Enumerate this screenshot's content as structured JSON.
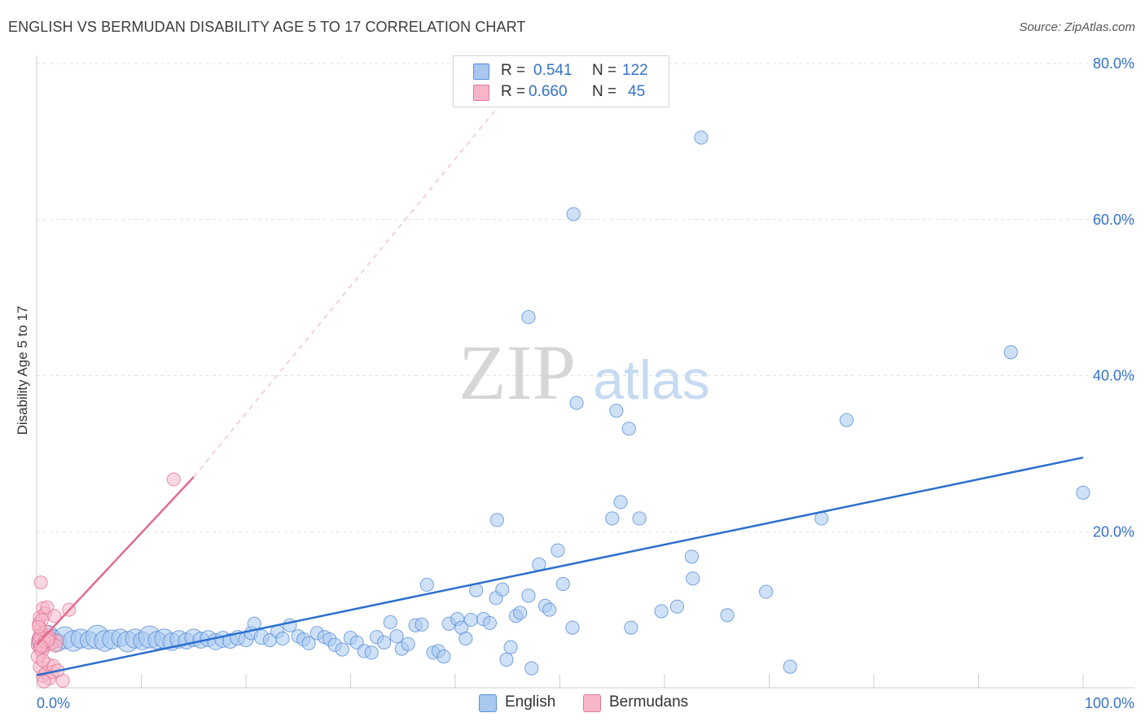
{
  "header": {
    "title": "ENGLISH VS BERMUDAN DISABILITY AGE 5 TO 17 CORRELATION CHART",
    "source": "Source: ZipAtlas.com"
  },
  "watermark": {
    "zip": "ZIP",
    "atlas": "atlas"
  },
  "colors": {
    "english_fill": "#a8c8f0",
    "english_stroke": "#5a8fd6",
    "english_line": "#2a6fcf",
    "bermudan_fill": "#f7b6c8",
    "bermudan_stroke": "#e07898",
    "bermudan_line": "#e46a8e",
    "tick_label": "#3572c9",
    "grid": "#e1e1e1"
  },
  "legend": {
    "english": {
      "r_label": "R = ",
      "r_value": "0.541",
      "n_label": "N = ",
      "n_value": "122"
    },
    "bermudans": {
      "r_label": "R = ",
      "r_value": "0.660",
      "n_label": "N = ",
      "n_value": "45"
    }
  },
  "bottom_legend": {
    "english": "English",
    "bermudans": "Bermudans"
  },
  "chart_data": {
    "type": "scatter",
    "title": "ENGLISH VS BERMUDAN DISABILITY AGE 5 TO 17 CORRELATION CHART",
    "xlabel": "",
    "ylabel": "Disability Age 5 to 17",
    "xlim": [
      0,
      100
    ],
    "ylim": [
      0,
      80
    ],
    "x_tick_labels": [
      "0.0%",
      "100.0%"
    ],
    "y_ticks": [
      20,
      40,
      60,
      80
    ],
    "y_tick_labels": [
      "20.0%",
      "40.0%",
      "60.0%",
      "80.0%"
    ],
    "grid": true,
    "legend_position": "top-center",
    "series": [
      {
        "name": "English",
        "r": 0.541,
        "n": 122,
        "trend": {
          "x": [
            0,
            100
          ],
          "y": [
            1.6,
            29.5
          ],
          "style": "solid"
        },
        "points": [
          [
            0.5,
            6.0,
            14
          ],
          [
            1.0,
            6.5,
            16
          ],
          [
            1.5,
            6.2,
            13
          ],
          [
            2.0,
            5.8,
            12
          ],
          [
            2.7,
            6.4,
            15
          ],
          [
            3.5,
            6.0,
            14
          ],
          [
            4.2,
            6.3,
            13
          ],
          [
            5.0,
            6.1,
            12
          ],
          [
            5.8,
            6.5,
            16
          ],
          [
            6.5,
            6.0,
            14
          ],
          [
            7.2,
            6.2,
            13
          ],
          [
            8.0,
            6.4,
            12
          ],
          [
            8.7,
            5.9,
            14
          ],
          [
            9.4,
            6.3,
            13
          ],
          [
            10.1,
            6.0,
            12
          ],
          [
            10.8,
            6.5,
            15
          ],
          [
            11.5,
            6.1,
            12
          ],
          [
            12.2,
            6.3,
            13
          ],
          [
            12.9,
            5.9,
            12
          ],
          [
            13.6,
            6.2,
            12
          ],
          [
            14.3,
            6.0,
            11
          ],
          [
            15.0,
            6.4,
            12
          ],
          [
            15.7,
            6.1,
            11
          ],
          [
            16.4,
            6.3,
            11
          ],
          [
            17.1,
            5.9,
            11
          ],
          [
            17.8,
            6.2,
            11
          ],
          [
            18.5,
            6.0,
            10
          ],
          [
            19.2,
            6.4,
            10
          ],
          [
            20.0,
            6.2,
            10
          ],
          [
            20.5,
            7.0,
            9
          ],
          [
            20.8,
            8.2,
            9
          ],
          [
            21.5,
            6.5,
            10
          ],
          [
            22.3,
            6.1,
            9
          ],
          [
            23.0,
            7.2,
            9
          ],
          [
            23.5,
            6.3,
            9
          ],
          [
            24.2,
            8.0,
            9
          ],
          [
            25.0,
            6.6,
            9
          ],
          [
            25.5,
            6.2,
            9
          ],
          [
            26.0,
            5.7,
            9
          ],
          [
            26.8,
            7.0,
            9
          ],
          [
            27.5,
            6.5,
            9
          ],
          [
            28.0,
            6.2,
            9
          ],
          [
            28.5,
            5.5,
            9
          ],
          [
            29.2,
            4.9,
            9
          ],
          [
            30.0,
            6.4,
            9
          ],
          [
            30.6,
            5.8,
            9
          ],
          [
            31.3,
            4.7,
            9
          ],
          [
            32.0,
            4.5,
            9
          ],
          [
            32.5,
            6.5,
            9
          ],
          [
            33.2,
            5.8,
            9
          ],
          [
            33.8,
            8.4,
            9
          ],
          [
            34.4,
            6.6,
            9
          ],
          [
            34.9,
            5.0,
            9
          ],
          [
            35.5,
            5.6,
            9
          ],
          [
            36.2,
            8.0,
            9
          ],
          [
            36.8,
            8.1,
            9
          ],
          [
            37.3,
            13.2,
            9
          ],
          [
            37.9,
            4.5,
            9
          ],
          [
            38.4,
            4.7,
            9
          ],
          [
            38.9,
            4.0,
            9
          ],
          [
            39.4,
            8.2,
            9
          ],
          [
            40.2,
            8.8,
            9
          ],
          [
            40.6,
            7.7,
            9
          ],
          [
            41.0,
            6.3,
            9
          ],
          [
            41.5,
            8.7,
            9
          ],
          [
            42.0,
            12.5,
            9
          ],
          [
            42.7,
            8.8,
            9
          ],
          [
            43.3,
            8.3,
            9
          ],
          [
            43.9,
            11.5,
            9
          ],
          [
            44.5,
            12.6,
            9
          ],
          [
            44.9,
            3.6,
            9
          ],
          [
            45.3,
            5.2,
            9
          ],
          [
            45.8,
            9.2,
            9
          ],
          [
            46.2,
            9.6,
            9
          ],
          [
            47.0,
            11.8,
            9
          ],
          [
            47.3,
            2.5,
            9
          ],
          [
            48.0,
            15.8,
            9
          ],
          [
            48.6,
            10.5,
            9
          ],
          [
            49.0,
            10.0,
            9
          ],
          [
            49.8,
            17.6,
            9
          ],
          [
            50.3,
            13.3,
            9
          ],
          [
            51.2,
            7.7,
            9
          ],
          [
            51.6,
            36.5,
            9
          ],
          [
            55.0,
            21.7,
            9
          ],
          [
            55.4,
            35.5,
            9
          ],
          [
            55.8,
            23.8,
            9
          ],
          [
            56.6,
            33.2,
            9
          ],
          [
            56.8,
            7.7,
            9
          ],
          [
            57.6,
            21.7,
            9
          ],
          [
            59.7,
            9.8,
            9
          ],
          [
            61.2,
            10.4,
            9
          ],
          [
            62.6,
            16.8,
            9
          ],
          [
            62.7,
            14.0,
            9
          ],
          [
            63.5,
            70.5,
            9
          ],
          [
            66.0,
            9.3,
            9
          ],
          [
            69.7,
            12.3,
            9
          ],
          [
            72.0,
            2.7,
            9
          ],
          [
            75.0,
            21.7,
            9
          ],
          [
            77.4,
            34.3,
            9
          ],
          [
            93.1,
            43.0,
            9
          ],
          [
            100.0,
            25.0,
            9
          ],
          [
            51.3,
            60.7,
            9
          ],
          [
            47.0,
            47.5,
            9
          ],
          [
            44.0,
            21.5,
            9
          ]
        ]
      },
      {
        "name": "Bermudans",
        "r": 0.66,
        "n": 45,
        "trend": {
          "x": [
            0,
            15
          ],
          "y": [
            5.5,
            27.0
          ],
          "style": "solid",
          "extended_to": [
            47.5,
            80
          ],
          "extended_style": "dashed"
        },
        "points": [
          [
            0.1,
            5.5,
            8
          ],
          [
            0.2,
            6.3,
            8
          ],
          [
            0.3,
            5.0,
            8
          ],
          [
            0.4,
            7.0,
            8
          ],
          [
            0.2,
            8.2,
            8
          ],
          [
            0.5,
            6.8,
            8
          ],
          [
            0.3,
            9.0,
            8
          ],
          [
            0.6,
            10.2,
            8
          ],
          [
            0.4,
            13.5,
            8
          ],
          [
            0.7,
            5.8,
            8
          ],
          [
            0.5,
            4.6,
            8
          ],
          [
            0.8,
            6.5,
            8
          ],
          [
            0.3,
            2.7,
            8
          ],
          [
            0.6,
            1.5,
            8
          ],
          [
            0.9,
            2.0,
            8
          ],
          [
            1.0,
            5.5,
            8
          ],
          [
            1.1,
            3.0,
            8
          ],
          [
            1.2,
            1.2,
            8
          ],
          [
            0.2,
            6.0,
            8
          ],
          [
            0.4,
            7.5,
            8
          ],
          [
            0.6,
            5.2,
            8
          ],
          [
            0.8,
            9.5,
            8
          ],
          [
            1.0,
            10.3,
            8
          ],
          [
            1.3,
            6.3,
            8
          ],
          [
            1.5,
            2.0,
            8
          ],
          [
            1.7,
            9.2,
            8
          ],
          [
            1.9,
            6.0,
            8
          ],
          [
            0.7,
            0.8,
            8
          ],
          [
            2.5,
            0.9,
            8
          ],
          [
            3.1,
            10.0,
            8
          ],
          [
            0.9,
            7.2,
            8
          ],
          [
            1.4,
            5.7,
            8
          ],
          [
            0.1,
            4.0,
            8
          ],
          [
            0.5,
            8.7,
            8
          ],
          [
            1.6,
            2.8,
            8
          ],
          [
            0.3,
            6.6,
            8
          ],
          [
            0.8,
            5.9,
            8
          ],
          [
            1.2,
            6.4,
            8
          ],
          [
            2.0,
            2.2,
            8
          ],
          [
            0.2,
            7.8,
            8
          ],
          [
            1.8,
            5.4,
            8
          ],
          [
            0.6,
            3.5,
            8
          ],
          [
            13.1,
            26.7,
            8
          ],
          [
            1.1,
            6.1,
            8
          ],
          [
            0.4,
            5.3,
            8
          ]
        ]
      }
    ]
  }
}
